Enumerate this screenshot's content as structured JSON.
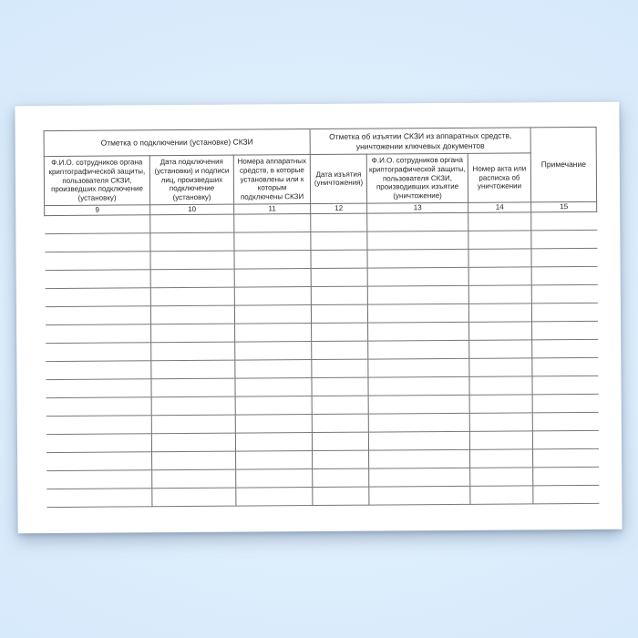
{
  "document": {
    "kind": "journal-form-page",
    "language": "ru"
  },
  "colors": {
    "background_blue": "#d7e9fc",
    "page_white": "#ffffff",
    "table_border_gray": "#6e6e6e",
    "text_dark": "#262626"
  },
  "table": {
    "group_headers": [
      {
        "label": "Отметка о подключении (установке) СКЗИ",
        "colspan": 3
      },
      {
        "label": "Отметка об изъятии СКЗИ из аппаратных средств, уничтожении ключевых документов",
        "colspan": 3
      }
    ],
    "columns": [
      {
        "number": "9",
        "header": "Ф.И.О. сотрудников органа криптографической защиты, пользователя СКЗИ, произведших подключение (установку)"
      },
      {
        "number": "10",
        "header": "Дата подключения (установки) и подписи лиц, произведших подключение (установку)"
      },
      {
        "number": "11",
        "header": "Номера аппаратных средств, в которые установлены или к которым подключены СКЗИ"
      },
      {
        "number": "12",
        "header": "Дата изъятия (уничтожения)"
      },
      {
        "number": "13",
        "header": "Ф.И.О. сотрудников органа криптографической защиты, пользователя СКЗИ, производивших изъятие (уничтожение)"
      },
      {
        "number": "14",
        "header": "Номер акта или расписка об уничтожении"
      },
      {
        "number": "15",
        "header": "Примечание"
      }
    ],
    "empty_row_count": 16,
    "empty_cell_value": ""
  }
}
